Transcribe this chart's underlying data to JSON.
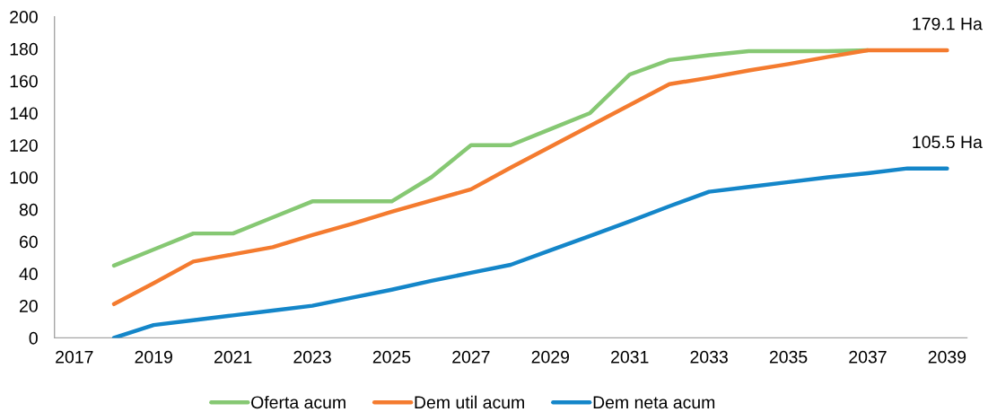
{
  "chart_data": {
    "type": "line",
    "x": [
      2018,
      2019,
      2020,
      2021,
      2022,
      2023,
      2024,
      2025,
      2026,
      2027,
      2028,
      2029,
      2030,
      2031,
      2032,
      2033,
      2034,
      2035,
      2036,
      2037,
      2038,
      2039
    ],
    "xlim": [
      2016.5,
      2039.5
    ],
    "xticks": [
      2017,
      2019,
      2021,
      2023,
      2025,
      2027,
      2029,
      2031,
      2033,
      2035,
      2037,
      2039
    ],
    "ylim": [
      0,
      200
    ],
    "yticks": [
      0,
      20,
      40,
      60,
      80,
      100,
      120,
      140,
      160,
      180,
      200
    ],
    "legend": "bottom",
    "line_style": "solid",
    "series": [
      {
        "name": "Oferta acum",
        "color": "#86c873",
        "values": [
          45,
          55,
          65,
          65,
          75,
          85,
          85,
          85,
          100,
          120,
          120,
          130,
          140,
          164,
          173,
          176,
          178.5,
          178.5,
          178.5,
          179.1,
          null,
          null
        ]
      },
      {
        "name": "Dem util acum",
        "color": "#f47b2f",
        "values": [
          21,
          34,
          47.5,
          52,
          56.5,
          64,
          71,
          78.5,
          85.5,
          92.5,
          106,
          119,
          132,
          145,
          158,
          162,
          166.5,
          170.5,
          175,
          179.1,
          179.1,
          179.1
        ]
      },
      {
        "name": "Dem neta acum",
        "color": "#1486c9",
        "values": [
          0,
          8,
          11,
          14,
          17,
          20,
          25,
          30,
          35.5,
          40.5,
          45.5,
          54.5,
          63.5,
          72.5,
          82,
          91,
          94,
          97,
          100,
          102.5,
          105.5,
          105.5
        ]
      }
    ],
    "annotations": [
      {
        "text": "179.1 Ha",
        "x": 2039,
        "y": 179.1
      },
      {
        "text": "105.5 Ha",
        "x": 2039,
        "y": 105.5
      }
    ]
  }
}
